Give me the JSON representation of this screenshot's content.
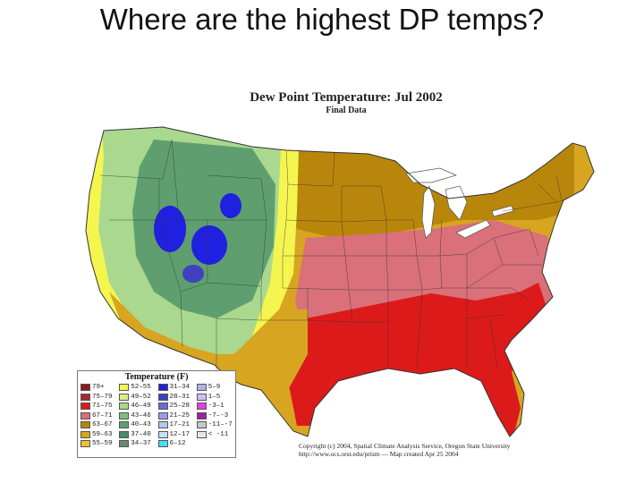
{
  "slide": {
    "title": "Where are the highest DP temps?"
  },
  "map": {
    "title": "Dew Point Temperature: Jul 2002",
    "subtitle": "Final Data",
    "copyright_line1": "Copyright (c) 2004, Spatial Climate Analysis Service, Oregon State University",
    "copyright_line2": "http://www.ocs.orst.edu/prism  —  Map created Apr 25 2004"
  },
  "legend": {
    "title": "Temperature (F)",
    "columns": [
      [
        {
          "label": "79+",
          "color": "#8b1a1a"
        },
        {
          "label": "75–79",
          "color": "#a52a2a"
        },
        {
          "label": "71–75",
          "color": "#dc1a1a"
        },
        {
          "label": "67–71",
          "color": "#d9707a"
        },
        {
          "label": "63–67",
          "color": "#b8860b"
        },
        {
          "label": "59–63",
          "color": "#d7a520"
        },
        {
          "label": "55–59",
          "color": "#f0c030"
        }
      ],
      [
        {
          "label": "52–55",
          "color": "#f5f550"
        },
        {
          "label": "49–52",
          "color": "#d8ee88"
        },
        {
          "label": "46–49",
          "color": "#a9d88e"
        },
        {
          "label": "43–46",
          "color": "#7fbf7f"
        },
        {
          "label": "40–43",
          "color": "#5f9f6f"
        },
        {
          "label": "37–40",
          "color": "#4a8a6a"
        },
        {
          "label": "34–37",
          "color": "#6a8a6a"
        }
      ],
      [
        {
          "label": "31–34",
          "color": "#2020e0"
        },
        {
          "label": "28–31",
          "color": "#4040c0"
        },
        {
          "label": "25–28",
          "color": "#6a6ad8"
        },
        {
          "label": "21–25",
          "color": "#9a9af0"
        },
        {
          "label": "17–21",
          "color": "#b0c8f0"
        },
        {
          "label": "12–17",
          "color": "#c8e0f8"
        },
        {
          "label": "6–12",
          "color": "#40e0f0"
        }
      ],
      [
        {
          "label": "5–9",
          "color": "#b0b0e8"
        },
        {
          "label": "1–5",
          "color": "#d0c0f0"
        },
        {
          "label": "-3–1",
          "color": "#e040e0"
        },
        {
          "label": "-7–-3",
          "color": "#a020a0"
        },
        {
          "label": "-11–-7",
          "color": "#c8c8c8"
        },
        {
          "label": "< -11",
          "color": "#e8e8e8"
        }
      ]
    ]
  },
  "colors": {
    "deep_red": "#dc1a1a",
    "pink": "#d9707a",
    "olive": "#b8860b",
    "gold": "#d7a520",
    "yellow": "#f5f550",
    "light_green": "#a9d88e",
    "green": "#5f9f6f",
    "blue": "#2020e0"
  }
}
